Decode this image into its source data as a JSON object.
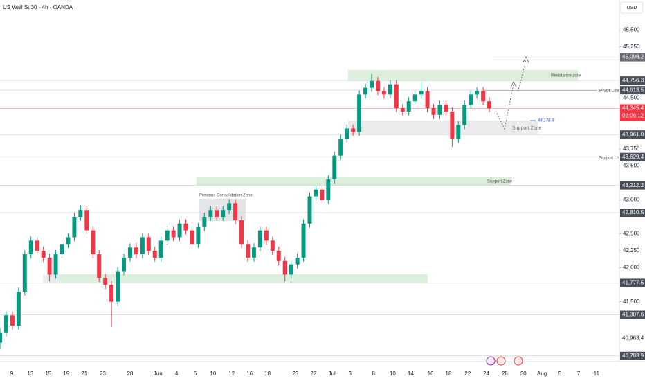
{
  "header": {
    "title": "US Wall St 30 · 4h · OANDA",
    "currency": "USD"
  },
  "chart_data": {
    "type": "candlestick",
    "up_color": "#089981",
    "down_color": "#f23645",
    "x": [
      0,
      1,
      2,
      3,
      4,
      5,
      6,
      7,
      8,
      9,
      10,
      11,
      12,
      13,
      14,
      15,
      16,
      17,
      18,
      19,
      20,
      21,
      22,
      23,
      24,
      25,
      26,
      27,
      28,
      29,
      30,
      31,
      32,
      33,
      34,
      35,
      36,
      37,
      38,
      39,
      40,
      41,
      42,
      43,
      44,
      45,
      46,
      47,
      48,
      49,
      50,
      51,
      52,
      53,
      54,
      55,
      56,
      57,
      58,
      59,
      60,
      61,
      62,
      63,
      64,
      65,
      66,
      67,
      68,
      69,
      70,
      71,
      72,
      73,
      74,
      75,
      76,
      77,
      78,
      79
    ],
    "open": [
      40900,
      41050,
      41300,
      41150,
      41650,
      42200,
      42400,
      42250,
      42150,
      41900,
      42200,
      42350,
      42450,
      42750,
      42850,
      42550,
      42200,
      41850,
      41750,
      41500,
      41950,
      42150,
      42300,
      42200,
      42450,
      42250,
      42150,
      42400,
      42550,
      42450,
      42650,
      42550,
      42350,
      42600,
      42750,
      42850,
      42750,
      42850,
      42950,
      42700,
      42350,
      42150,
      42300,
      42550,
      42400,
      42250,
      42100,
      41900,
      42050,
      42150,
      42650,
      43050,
      43150,
      43000,
      43300,
      43650,
      43900,
      44050,
      44000,
      44550,
      44650,
      44750,
      44600,
      44550,
      44700,
      44350,
      44300,
      44450,
      44550,
      44600,
      44350,
      44250,
      44400,
      44300,
      43900,
      44100,
      44400,
      44550,
      44600,
      44450
    ],
    "high": [
      41110,
      41360,
      41360,
      41710,
      42260,
      42460,
      42460,
      42310,
      42210,
      42260,
      42410,
      42510,
      42810,
      42920,
      42910,
      42610,
      42260,
      41910,
      41810,
      42010,
      42210,
      42360,
      42360,
      42510,
      42510,
      42310,
      42460,
      42610,
      42610,
      42710,
      42710,
      42610,
      42660,
      42810,
      42910,
      42910,
      42910,
      43010,
      43010,
      42760,
      42410,
      42360,
      42610,
      42610,
      42460,
      42310,
      42160,
      42110,
      42210,
      42710,
      43110,
      43210,
      43210,
      43360,
      43710,
      43960,
      44110,
      44110,
      44610,
      44710,
      44850,
      44810,
      44660,
      44760,
      44760,
      44410,
      44510,
      44610,
      44720,
      44660,
      44410,
      44460,
      44460,
      44360,
      44160,
      44460,
      44610,
      44660,
      44660,
      44510
    ],
    "low": [
      40800,
      40990,
      41090,
      41090,
      41590,
      42140,
      42190,
      42090,
      41800,
      41840,
      42140,
      42290,
      42390,
      42690,
      42490,
      42140,
      41790,
      41690,
      41130,
      41440,
      41890,
      42090,
      42140,
      42140,
      42190,
      42090,
      42090,
      42340,
      42390,
      42390,
      42490,
      42290,
      42290,
      42540,
      42690,
      42690,
      42690,
      42790,
      42640,
      42290,
      42090,
      42090,
      42240,
      42340,
      42190,
      42040,
      41800,
      41840,
      41990,
      42090,
      42590,
      42990,
      42940,
      42940,
      43240,
      43590,
      43840,
      43940,
      43940,
      44490,
      44590,
      44540,
      44490,
      44490,
      44290,
      44240,
      44240,
      44390,
      44490,
      44290,
      44190,
      44190,
      44240,
      43780,
      43840,
      44040,
      44340,
      44490,
      44390,
      44290
    ],
    "close": [
      41050,
      41300,
      41150,
      41650,
      42200,
      42400,
      42250,
      42150,
      41900,
      42200,
      42350,
      42450,
      42750,
      42850,
      42550,
      42200,
      41850,
      41750,
      41500,
      41950,
      42150,
      42300,
      42200,
      42450,
      42250,
      42150,
      42400,
      42550,
      42450,
      42650,
      42550,
      42350,
      42600,
      42750,
      42850,
      42750,
      42850,
      42950,
      42700,
      42350,
      42150,
      42300,
      42550,
      42400,
      42250,
      42100,
      41900,
      42050,
      42150,
      42650,
      43050,
      43150,
      43000,
      43300,
      43650,
      43900,
      44050,
      44000,
      44550,
      44650,
      44750,
      44600,
      44550,
      44700,
      44350,
      44300,
      44450,
      44550,
      44600,
      44350,
      44250,
      44400,
      44300,
      43900,
      44100,
      44400,
      44550,
      44600,
      44450,
      44345.4
    ],
    "xlim": [
      0,
      100
    ],
    "ylim": [
      40620,
      45940
    ],
    "xticks": [
      {
        "value": 1.9,
        "label": "9"
      },
      {
        "value": 4.9,
        "label": "13"
      },
      {
        "value": 7.8,
        "label": "15"
      },
      {
        "value": 10.7,
        "label": "19"
      },
      {
        "value": 13.6,
        "label": "21"
      },
      {
        "value": 16.6,
        "label": "23"
      },
      {
        "value": 21,
        "label": "28"
      },
      {
        "value": 25.5,
        "label": "Jun"
      },
      {
        "value": 28.5,
        "label": "4"
      },
      {
        "value": 31.5,
        "label": "6"
      },
      {
        "value": 34.4,
        "label": "10"
      },
      {
        "value": 37.4,
        "label": "12"
      },
      {
        "value": 40.3,
        "label": "16"
      },
      {
        "value": 43.2,
        "label": "18"
      },
      {
        "value": 47.7,
        "label": "23"
      },
      {
        "value": 50.6,
        "label": "27"
      },
      {
        "value": 53.6,
        "label": "Jul"
      },
      {
        "value": 56.5,
        "label": "3"
      },
      {
        "value": 60.3,
        "label": "8"
      },
      {
        "value": 63.4,
        "label": "10"
      },
      {
        "value": 66.3,
        "label": "14"
      },
      {
        "value": 69.5,
        "label": "16"
      },
      {
        "value": 72.4,
        "label": "18"
      },
      {
        "value": 75.5,
        "label": "22"
      },
      {
        "value": 78.5,
        "label": "24"
      },
      {
        "value": 81.5,
        "label": "28"
      },
      {
        "value": 84.5,
        "label": "30"
      },
      {
        "value": 87.5,
        "label": "Aug"
      },
      {
        "value": 90.4,
        "label": "5"
      },
      {
        "value": 93.4,
        "label": "7"
      },
      {
        "value": 96.3,
        "label": "11"
      }
    ],
    "yticks": [
      {
        "value": 45500,
        "label": "45,500"
      },
      {
        "value": 45250,
        "label": "45,250"
      },
      {
        "value": 44500,
        "label": "44,500"
      },
      {
        "value": 43750,
        "label": "43,750"
      },
      {
        "value": 43500,
        "label": "43,500"
      },
      {
        "value": 43000,
        "label": "43,000"
      },
      {
        "value": 42500,
        "label": "42,500"
      },
      {
        "value": 42250,
        "label": "42,250"
      },
      {
        "value": 42000,
        "label": "42,000"
      },
      {
        "value": 41500,
        "label": "41,500"
      }
    ],
    "price_levels": [
      {
        "value": 45098.2,
        "label": "45,098.2"
      },
      {
        "value": 44756.3,
        "label": "44,756.3"
      },
      {
        "value": 44613.5,
        "label": "44,613.5"
      },
      {
        "value": 43961.0,
        "label": "43,961.0"
      },
      {
        "value": 43629.4,
        "label": "43,629.4"
      },
      {
        "value": 43212.2,
        "label": "43,212.2"
      },
      {
        "value": 42810.5,
        "label": "42,810.5"
      },
      {
        "value": 41777.5,
        "label": "41,777.5"
      },
      {
        "value": 41307.6,
        "label": "41,307.6"
      },
      {
        "value": 40703.9,
        "label": "40,703.9"
      }
    ],
    "plain_level": {
      "value": 40963.4,
      "label": "40,963.4"
    },
    "current_price": {
      "value": 44345.4,
      "label": "44,345.4",
      "countdown": "02:06:12"
    },
    "marker": {
      "value": 44178.8,
      "label": "44,178.8"
    },
    "annotations": {
      "resistance": "Resistance zone",
      "pivot": "Pivot Line",
      "support_upper": "Support Zone",
      "support_line": "Support Line",
      "support_lower": "Support Zone",
      "consolidation": "Previous Consolidation Zone"
    }
  }
}
